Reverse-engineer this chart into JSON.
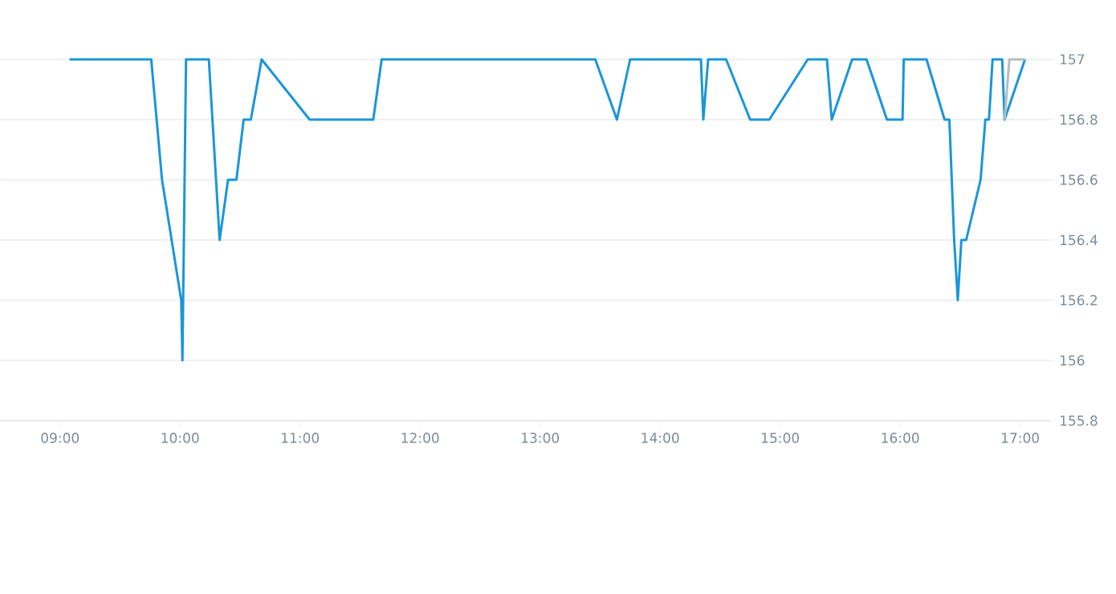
{
  "chart_data": {
    "type": "line",
    "series": [
      {
        "color": "#1a96d8",
        "x": [
          9.08,
          9.76,
          9.85,
          10.01,
          10.02,
          10.05,
          10.24,
          10.33,
          10.4,
          10.47,
          10.53,
          10.59,
          10.68,
          11.08,
          11.61,
          11.68,
          13.46,
          13.64,
          13.75,
          14.34,
          14.36,
          14.4,
          14.55,
          14.75,
          14.91,
          15.23,
          15.39,
          15.43,
          15.6,
          15.72,
          15.89,
          16.02,
          16.03,
          16.22,
          16.37,
          16.41,
          16.45,
          16.48,
          16.51,
          16.55,
          16.67,
          16.71,
          16.74,
          16.77,
          16.85,
          16.87,
          17.04
        ],
        "values": [
          157,
          157,
          156.6,
          156.2,
          156.0,
          157,
          157,
          156.4,
          156.6,
          156.6,
          156.8,
          156.8,
          157,
          156.8,
          156.8,
          157,
          157,
          156.8,
          157,
          157,
          156.8,
          157,
          157,
          156.8,
          156.8,
          157,
          157,
          156.8,
          157,
          157,
          156.8,
          156.8,
          157,
          157,
          156.8,
          156.8,
          156.4,
          156.2,
          156.4,
          156.4,
          156.6,
          156.8,
          156.8,
          157,
          157,
          156.8,
          157
        ]
      },
      {
        "color": "#b4bcc4",
        "x": [
          16.87,
          16.91,
          17.04
        ],
        "values": [
          156.8,
          157,
          157
        ]
      }
    ],
    "xlim": [
      8.5,
      17.25
    ],
    "xticks": [
      {
        "value": 9,
        "label": "09:00"
      },
      {
        "value": 10,
        "label": "10:00"
      },
      {
        "value": 11,
        "label": "11:00"
      },
      {
        "value": 12,
        "label": "12:00"
      },
      {
        "value": 13,
        "label": "13:00"
      },
      {
        "value": 14,
        "label": "14:00"
      },
      {
        "value": 15,
        "label": "15:00"
      },
      {
        "value": 16,
        "label": "16:00"
      },
      {
        "value": 17,
        "label": "17:00"
      }
    ],
    "ylim": [
      155.8,
      157
    ],
    "yticks": [
      155.8,
      156,
      156.2,
      156.4,
      156.6,
      156.8,
      157
    ],
    "grid": "y",
    "marker": "none",
    "line_style": "solid"
  }
}
